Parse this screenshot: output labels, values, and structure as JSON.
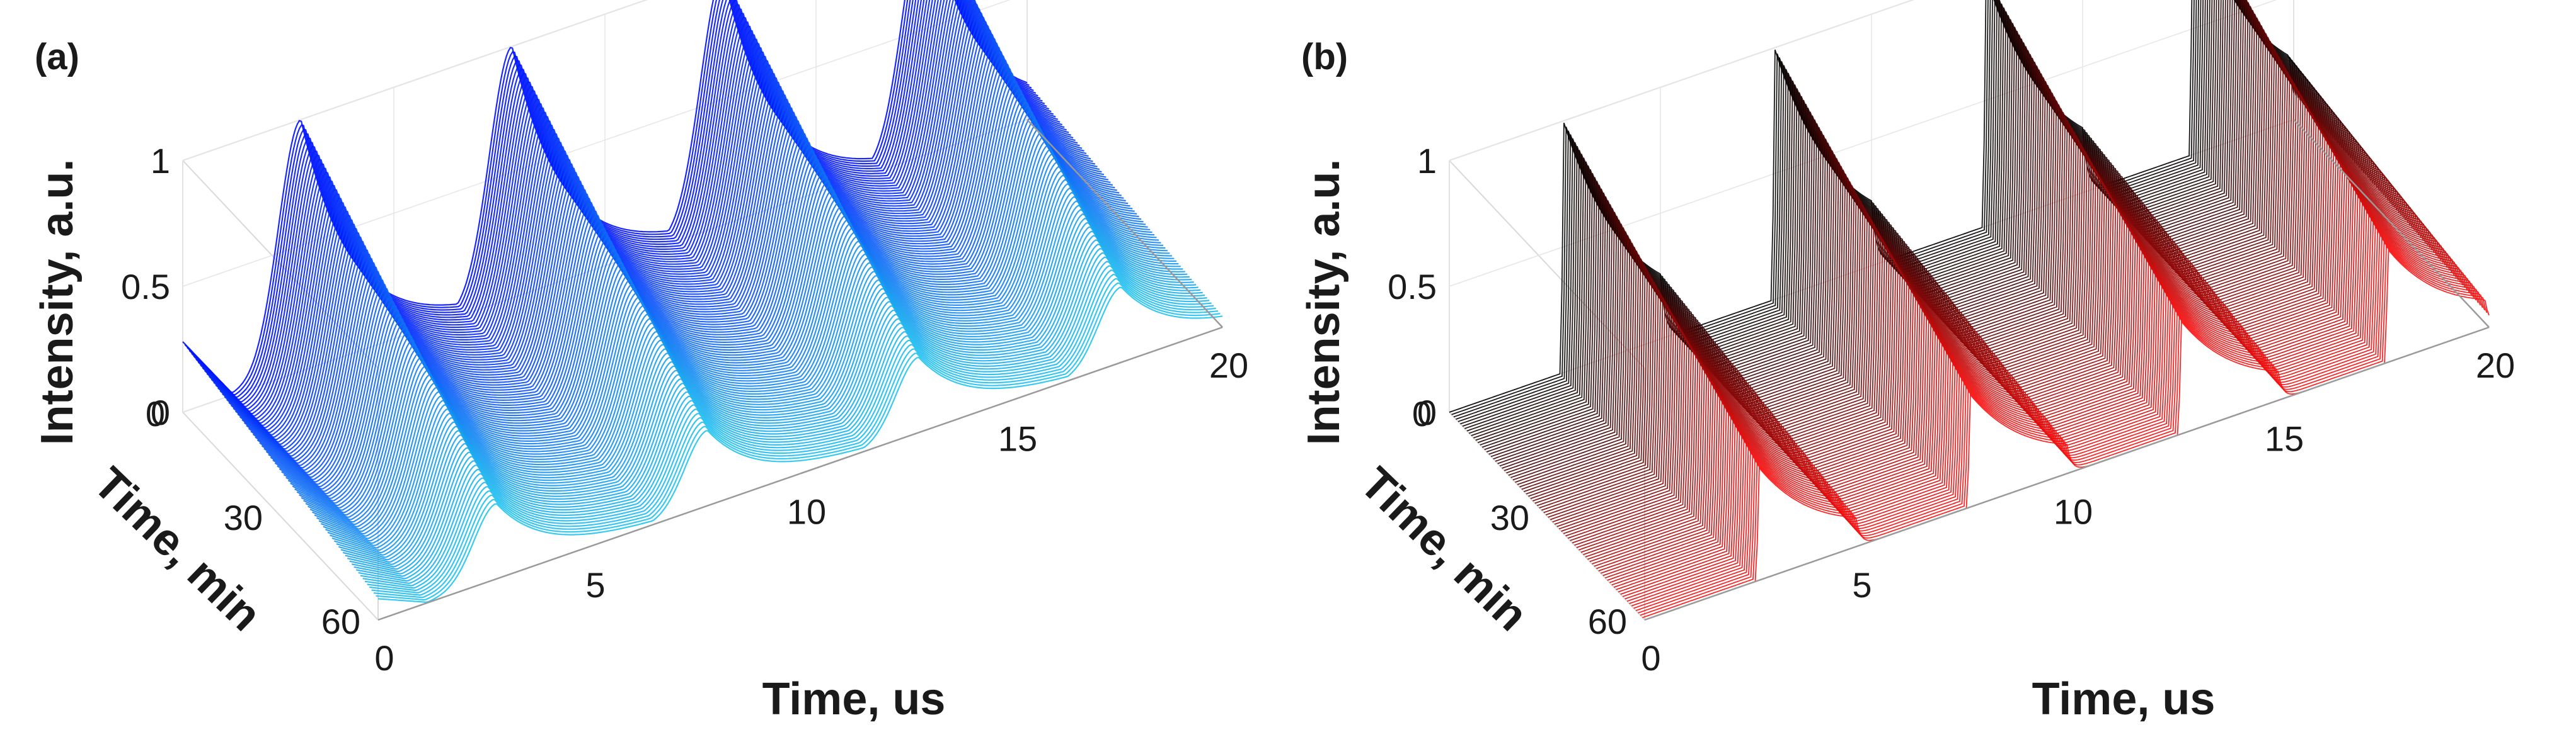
{
  "chart_data": [
    {
      "type": "waterfall-3d-line",
      "panel_label": "(a)",
      "xlabel": "Time, us",
      "ylabel": "Time, min",
      "zlabel": "Intensity, a.u.",
      "x_ticks": [
        "0",
        "5",
        "10",
        "15",
        "20"
      ],
      "y_ticks": [
        "0",
        "30",
        "60"
      ],
      "z_ticks": [
        "0",
        "0.5",
        "1"
      ],
      "xlim": [
        0,
        20
      ],
      "ylim": [
        0,
        60
      ],
      "zlim": [
        0,
        1
      ],
      "pulse_peak_times_us": [
        2.8,
        7.8,
        12.8,
        17.6
      ],
      "pulse_type": "smooth",
      "trace_count": 90,
      "color_start": "#0010ff",
      "color_end": "#20c4ee"
    },
    {
      "type": "waterfall-3d-line",
      "panel_label": "(b)",
      "xlabel": "Time, us",
      "ylabel": "Time, min",
      "zlabel": "Intensity, a.u.",
      "x_ticks": [
        "0",
        "5",
        "10",
        "15",
        "20"
      ],
      "y_ticks": [
        "0",
        "30",
        "60"
      ],
      "z_ticks": [
        "0",
        "0.5",
        "1"
      ],
      "xlim": [
        0,
        20
      ],
      "ylim": [
        0,
        60
      ],
      "zlim": [
        0,
        1
      ],
      "pulse_peak_times_us": [
        2.7,
        7.7,
        12.7,
        17.6
      ],
      "pulse_type": "sharp",
      "trace_count": 90,
      "color_start": "#000000",
      "color_end": "#ff1010"
    }
  ]
}
